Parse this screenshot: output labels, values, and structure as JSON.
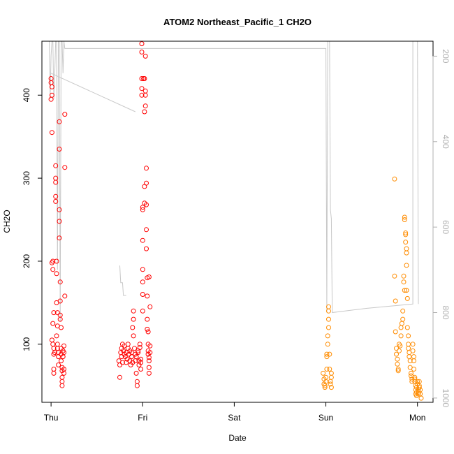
{
  "chart_data": {
    "type": "scatter",
    "title": "ATOM2 Northeast_Pacific_1 CH2O",
    "xlabel": "Date",
    "ylabel": "CH2O",
    "x_ticks": [
      "Thu",
      "Fri",
      "Sat",
      "Sun",
      "Mon"
    ],
    "xlim": [
      -0.1,
      4.17
    ],
    "ylim": [
      30,
      465
    ],
    "y_ticks": [
      100,
      200,
      300,
      400
    ],
    "y2_ticks": [
      200,
      400,
      600,
      800,
      1000
    ],
    "y2lim": [
      1010,
      165
    ],
    "grid": false,
    "colors": {
      "early_series": "#ff0000",
      "late_series": "#ff8c00",
      "altitude_line": "#c8c8c8",
      "axis": "#000000",
      "right_axis": "#b0b0b0"
    },
    "series": [
      {
        "color": "early_series",
        "points": [
          [
            0.0,
            420
          ],
          [
            0.0,
            415
          ],
          [
            0.01,
            410
          ],
          [
            0.01,
            400
          ],
          [
            0.0,
            395
          ],
          [
            0.01,
            355
          ],
          [
            0.02,
            200
          ],
          [
            0.01,
            198
          ],
          [
            0.02,
            190
          ],
          [
            0.03,
            138
          ],
          [
            0.02,
            125
          ],
          [
            0.01,
            105
          ],
          [
            0.02,
            100
          ],
          [
            0.03,
            95
          ],
          [
            0.03,
            88
          ],
          [
            0.03,
            70
          ],
          [
            0.03,
            65
          ],
          [
            0.04,
            90
          ],
          [
            0.05,
            315
          ],
          [
            0.05,
            300
          ],
          [
            0.05,
            295
          ],
          [
            0.05,
            278
          ],
          [
            0.05,
            272
          ],
          [
            0.06,
            200
          ],
          [
            0.06,
            185
          ],
          [
            0.06,
            150
          ],
          [
            0.07,
            138
          ],
          [
            0.07,
            122
          ],
          [
            0.06,
            110
          ],
          [
            0.07,
            100
          ],
          [
            0.07,
            95
          ],
          [
            0.08,
            90
          ],
          [
            0.08,
            85
          ],
          [
            0.08,
            75
          ],
          [
            0.09,
            368
          ],
          [
            0.09,
            335
          ],
          [
            0.09,
            262
          ],
          [
            0.09,
            248
          ],
          [
            0.09,
            228
          ],
          [
            0.1,
            175
          ],
          [
            0.1,
            152
          ],
          [
            0.1,
            135
          ],
          [
            0.1,
            130
          ],
          [
            0.11,
            120
          ],
          [
            0.11,
            95
          ],
          [
            0.11,
            88
          ],
          [
            0.11,
            80
          ],
          [
            0.12,
            72
          ],
          [
            0.12,
            68
          ],
          [
            0.12,
            60
          ],
          [
            0.12,
            55
          ],
          [
            0.12,
            50
          ],
          [
            0.13,
            92
          ],
          [
            0.13,
            85
          ],
          [
            0.14,
            98
          ],
          [
            0.14,
            90
          ],
          [
            0.14,
            70
          ],
          [
            0.14,
            65
          ],
          [
            0.15,
            377
          ],
          [
            0.15,
            313
          ],
          [
            0.15,
            158
          ],
          [
            0.74,
            80
          ],
          [
            0.75,
            75
          ],
          [
            0.75,
            60
          ],
          [
            0.76,
            90
          ],
          [
            0.77,
            95
          ],
          [
            0.77,
            85
          ],
          [
            0.78,
            100
          ],
          [
            0.78,
            78
          ],
          [
            0.79,
            92
          ],
          [
            0.8,
            88
          ],
          [
            0.8,
            98
          ],
          [
            0.81,
            85
          ],
          [
            0.82,
            78
          ],
          [
            0.82,
            90
          ],
          [
            0.83,
            82
          ],
          [
            0.84,
            95
          ],
          [
            0.84,
            100
          ],
          [
            0.85,
            88
          ],
          [
            0.86,
            92
          ],
          [
            0.86,
            80
          ],
          [
            0.87,
            75
          ],
          [
            0.88,
            90
          ],
          [
            0.88,
            85
          ],
          [
            0.89,
            78
          ],
          [
            0.89,
            120
          ],
          [
            0.9,
            130
          ],
          [
            0.9,
            110
          ],
          [
            0.9,
            140
          ],
          [
            0.91,
            95
          ],
          [
            0.92,
            88
          ],
          [
            0.92,
            80
          ],
          [
            0.93,
            85
          ],
          [
            0.93,
            65
          ],
          [
            0.94,
            55
          ],
          [
            0.94,
            50
          ],
          [
            0.95,
            92
          ],
          [
            0.95,
            90
          ],
          [
            0.96,
            80
          ],
          [
            0.96,
            75
          ],
          [
            0.97,
            100
          ],
          [
            0.97,
            96
          ],
          [
            0.98,
            82
          ],
          [
            0.98,
            78
          ],
          [
            0.98,
            70
          ],
          [
            0.99,
            462
          ],
          [
            0.99,
            452
          ],
          [
            0.99,
            420
          ],
          [
            0.99,
            408
          ],
          [
            0.99,
            400
          ],
          [
            1.0,
            265
          ],
          [
            1.0,
            262
          ],
          [
            1.0,
            225
          ],
          [
            1.0,
            190
          ],
          [
            1.0,
            175
          ],
          [
            1.0,
            160
          ],
          [
            1.0,
            140
          ],
          [
            1.01,
            420
          ],
          [
            1.02,
            420
          ],
          [
            1.02,
            380
          ],
          [
            1.02,
            290
          ],
          [
            1.02,
            270
          ],
          [
            1.03,
            447
          ],
          [
            1.03,
            405
          ],
          [
            1.03,
            400
          ],
          [
            1.03,
            387
          ],
          [
            1.04,
            312
          ],
          [
            1.04,
            294
          ],
          [
            1.04,
            268
          ],
          [
            1.04,
            238
          ],
          [
            1.04,
            215
          ],
          [
            1.05,
            180
          ],
          [
            1.05,
            158
          ],
          [
            1.05,
            130
          ],
          [
            1.05,
            118
          ],
          [
            1.06,
            115
          ],
          [
            1.06,
            100
          ],
          [
            1.06,
            92
          ],
          [
            1.06,
            88
          ],
          [
            1.07,
            84
          ],
          [
            1.07,
            80
          ],
          [
            1.07,
            72
          ],
          [
            1.07,
            65
          ],
          [
            1.07,
            181
          ],
          [
            1.08,
            145
          ],
          [
            1.08,
            98
          ],
          [
            1.08,
            90
          ]
        ]
      },
      {
        "color": "late_series",
        "points": [
          [
            2.97,
            65
          ],
          [
            2.98,
            58
          ],
          [
            2.98,
            52
          ],
          [
            2.99,
            48
          ],
          [
            2.99,
            50
          ],
          [
            3.0,
            55
          ],
          [
            3.0,
            60
          ],
          [
            3.01,
            70
          ],
          [
            3.01,
            88
          ],
          [
            3.01,
            85
          ],
          [
            3.02,
            100
          ],
          [
            3.02,
            110
          ],
          [
            3.03,
            120
          ],
          [
            3.03,
            130
          ],
          [
            3.03,
            140
          ],
          [
            3.03,
            145
          ],
          [
            3.04,
            88
          ],
          [
            3.04,
            70
          ],
          [
            3.05,
            55
          ],
          [
            3.05,
            52
          ],
          [
            3.06,
            60
          ],
          [
            3.06,
            65
          ],
          [
            3.06,
            48
          ],
          [
            3.75,
            299
          ],
          [
            3.75,
            182
          ],
          [
            3.76,
            152
          ],
          [
            3.76,
            115
          ],
          [
            3.77,
            95
          ],
          [
            3.77,
            88
          ],
          [
            3.78,
            82
          ],
          [
            3.78,
            76
          ],
          [
            3.79,
            70
          ],
          [
            3.79,
            68
          ],
          [
            3.8,
            100
          ],
          [
            3.8,
            92
          ],
          [
            3.81,
            98
          ],
          [
            3.82,
            110
          ],
          [
            3.82,
            120
          ],
          [
            3.83,
            125
          ],
          [
            3.84,
            130
          ],
          [
            3.84,
            140
          ],
          [
            3.85,
            182
          ],
          [
            3.85,
            175
          ],
          [
            3.86,
            165
          ],
          [
            3.86,
            253
          ],
          [
            3.86,
            250
          ],
          [
            3.87,
            234
          ],
          [
            3.87,
            232
          ],
          [
            3.87,
            223
          ],
          [
            3.88,
            215
          ],
          [
            3.88,
            210
          ],
          [
            3.88,
            195
          ],
          [
            3.88,
            165
          ],
          [
            3.89,
            155
          ],
          [
            3.89,
            120
          ],
          [
            3.9,
            110
          ],
          [
            3.9,
            100
          ],
          [
            3.9,
            95
          ],
          [
            3.91,
            90
          ],
          [
            3.91,
            85
          ],
          [
            3.92,
            80
          ],
          [
            3.92,
            72
          ],
          [
            3.93,
            65
          ],
          [
            3.93,
            62
          ],
          [
            3.94,
            58
          ],
          [
            3.94,
            55
          ],
          [
            3.95,
            100
          ],
          [
            3.95,
            92
          ],
          [
            3.96,
            85
          ],
          [
            3.96,
            80
          ],
          [
            3.96,
            70
          ],
          [
            3.97,
            60
          ],
          [
            3.97,
            58
          ],
          [
            3.97,
            55
          ],
          [
            3.98,
            50
          ],
          [
            3.98,
            45
          ],
          [
            3.98,
            40
          ],
          [
            3.99,
            38
          ],
          [
            3.99,
            42
          ],
          [
            3.99,
            48
          ],
          [
            4.0,
            55
          ],
          [
            4.0,
            52
          ],
          [
            4.01,
            45
          ],
          [
            4.01,
            40
          ],
          [
            4.01,
            42
          ],
          [
            4.02,
            48
          ],
          [
            4.02,
            50
          ],
          [
            4.02,
            55
          ],
          [
            4.03,
            45
          ],
          [
            4.03,
            40
          ],
          [
            4.04,
            35
          ]
        ]
      }
    ],
    "altitude_path": [
      [
        -0.02,
        165
      ],
      [
        -0.01,
        300
      ],
      [
        0.0,
        200
      ],
      [
        0.01,
        165
      ],
      [
        0.02,
        165
      ],
      [
        0.03,
        300
      ],
      [
        0.04,
        240
      ],
      [
        0.05,
        165
      ],
      [
        0.06,
        165
      ],
      [
        0.07,
        700
      ],
      [
        0.08,
        165
      ],
      [
        0.09,
        165
      ],
      [
        0.1,
        820
      ],
      [
        0.11,
        165
      ],
      [
        0.12,
        165
      ],
      [
        0.13,
        240
      ],
      [
        0.14,
        165
      ],
      [
        0.15,
        182
      ],
      [
        0.16,
        182
      ],
      [
        1.02,
        182
      ],
      [
        3.0,
        182
      ],
      [
        3.01,
        800
      ],
      [
        3.02,
        165
      ],
      [
        3.04,
        165
      ],
      [
        3.05,
        560
      ],
      [
        3.06,
        580
      ],
      [
        3.07,
        800
      ],
      [
        3.45,
        790
      ],
      [
        3.95,
        780
      ],
      [
        3.95,
        165
      ],
      [
        4.0,
        165
      ],
      [
        4.01,
        780
      ]
    ],
    "altitude_segments": [
      [
        [
          0.0,
          240
        ],
        [
          0.92,
          330
        ]
      ],
      [
        [
          0.75,
          690
        ],
        [
          0.76,
          730
        ],
        [
          0.78,
          730
        ],
        [
          0.79,
          760
        ],
        [
          0.81,
          760
        ],
        [
          0.82,
          760
        ]
      ]
    ]
  }
}
